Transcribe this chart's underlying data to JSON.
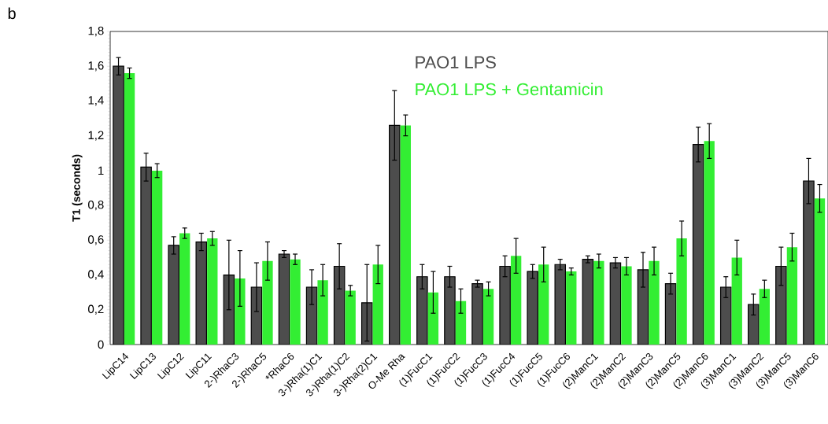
{
  "chart_data": {
    "type": "bar",
    "annotations": [
      "b"
    ],
    "ylabel": "T1 (seconds)",
    "legend": "top",
    "categories": [
      "LipC14",
      "LipC13",
      "LipC12",
      "LipC11",
      "2-)RhaC3",
      "2-)RhaC5",
      "*RhaC6",
      "3-)Rha(1)C1",
      "3-)Rha(1)C2",
      "3-)Rha(2)C1",
      "O-Me Rha",
      "(1)FucC1",
      "(1)FucC2",
      "(1)FucC3",
      "(1)FucC4",
      "(1)FucC5",
      "(1)FucC6",
      "(2)ManC1",
      "(2)ManC2",
      "(2)ManC3",
      "(2)ManC5",
      "(2)ManC6",
      "(3)ManC1",
      "(3)ManC2",
      "(3)ManC5",
      "(3)ManC6"
    ],
    "ylim": [
      0,
      1.8
    ],
    "yticks": [
      0,
      {
        "value": 0.2,
        "label": "0,2"
      },
      {
        "value": 0.4,
        "label": "0,4"
      },
      {
        "value": 0.6,
        "label": "0,6"
      },
      {
        "value": 0.8,
        "label": "0,8"
      },
      1,
      {
        "value": 1.2,
        "label": "1,2"
      },
      {
        "value": 1.4,
        "label": "1,4"
      },
      {
        "value": 1.6,
        "label": "1,6"
      },
      {
        "value": 1.8,
        "label": "1,8"
      }
    ],
    "grid": false,
    "series": [
      {
        "name": "PAO1 LPS",
        "color": "#4d4d4d",
        "values": [
          1.6,
          1.02,
          0.57,
          0.59,
          0.4,
          0.33,
          0.52,
          0.33,
          0.45,
          0.24,
          1.26,
          0.39,
          0.39,
          0.35,
          0.45,
          0.42,
          0.46,
          0.49,
          0.47,
          0.43,
          0.35,
          1.15,
          0.33,
          0.23,
          0.45,
          0.94
        ],
        "errors": [
          0.05,
          0.08,
          0.05,
          0.05,
          0.2,
          0.14,
          0.02,
          0.1,
          0.13,
          0.22,
          0.2,
          0.07,
          0.06,
          0.02,
          0.06,
          0.04,
          0.03,
          0.02,
          0.03,
          0.1,
          0.06,
          0.1,
          0.06,
          0.06,
          0.11,
          0.13
        ]
      },
      {
        "name": "PAO1 LPS + Gentamicin",
        "color": "#33ee33",
        "values": [
          1.56,
          1.0,
          0.64,
          0.61,
          0.38,
          0.48,
          0.49,
          0.37,
          0.31,
          0.46,
          1.26,
          0.3,
          0.25,
          0.32,
          0.51,
          0.46,
          0.42,
          0.48,
          0.45,
          0.48,
          0.61,
          1.17,
          0.5,
          0.32,
          0.56,
          0.84
        ],
        "errors": [
          0.03,
          0.04,
          0.03,
          0.04,
          0.16,
          0.11,
          0.03,
          0.09,
          0.03,
          0.11,
          0.06,
          0.12,
          0.07,
          0.04,
          0.1,
          0.1,
          0.02,
          0.04,
          0.05,
          0.08,
          0.1,
          0.1,
          0.1,
          0.05,
          0.08,
          0.08
        ]
      }
    ]
  }
}
